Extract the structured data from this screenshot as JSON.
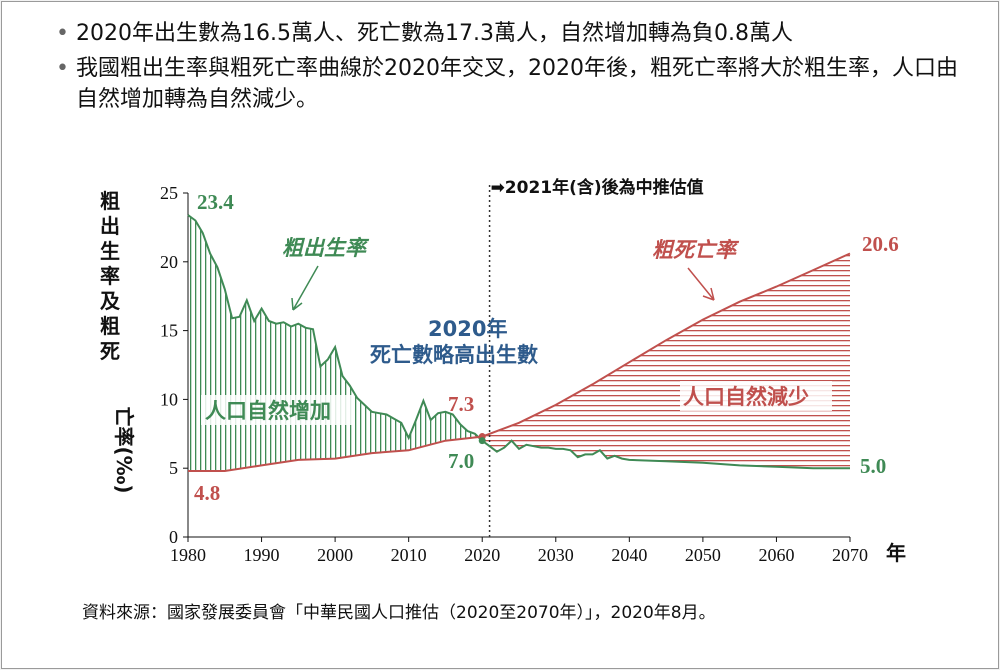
{
  "bullets": [
    "2020年出生數為16.5萬人、死亡數為17.3萬人，自然增加轉為負0.8萬人",
    "我國粗出生率與粗死亡率曲線於2020年交叉，2020年後，粗死亡率將大於粗生率，人口由自然增加轉為自然減少。"
  ],
  "colors": {
    "birth": "#3f8a55",
    "death": "#c0504d",
    "note_blue": "#2e5b8c"
  },
  "chart_data": {
    "type": "line",
    "title": "",
    "ylabel": "粗出生率及粗死亡率(‰)",
    "xlabel": "年",
    "xlim": [
      1980,
      2070
    ],
    "ylim": [
      0,
      25
    ],
    "x_ticks": [
      1980,
      1990,
      2000,
      2010,
      2020,
      2030,
      2040,
      2050,
      2060,
      2070
    ],
    "y_ticks": [
      0,
      5,
      10,
      15,
      20,
      25
    ],
    "projection_divider_year": 2021,
    "projection_note": "➡2021年(含)後為中推估值",
    "series": [
      {
        "name": "粗出生率",
        "points": [
          [
            1980,
            23.4
          ],
          [
            1981,
            23.0
          ],
          [
            1982,
            22.1
          ],
          [
            1983,
            20.6
          ],
          [
            1984,
            19.6
          ],
          [
            1985,
            18.0
          ],
          [
            1986,
            15.9
          ],
          [
            1987,
            16.0
          ],
          [
            1988,
            17.2
          ],
          [
            1989,
            15.7
          ],
          [
            1990,
            16.6
          ],
          [
            1991,
            15.7
          ],
          [
            1992,
            15.5
          ],
          [
            1993,
            15.6
          ],
          [
            1994,
            15.3
          ],
          [
            1995,
            15.5
          ],
          [
            1996,
            15.2
          ],
          [
            1997,
            15.1
          ],
          [
            1998,
            12.4
          ],
          [
            1999,
            12.9
          ],
          [
            2000,
            13.8
          ],
          [
            2001,
            11.7
          ],
          [
            2002,
            11.0
          ],
          [
            2003,
            10.1
          ],
          [
            2004,
            9.6
          ],
          [
            2005,
            9.1
          ],
          [
            2006,
            9.0
          ],
          [
            2007,
            8.9
          ],
          [
            2008,
            8.6
          ],
          [
            2009,
            8.3
          ],
          [
            2010,
            7.2
          ],
          [
            2011,
            8.5
          ],
          [
            2012,
            9.9
          ],
          [
            2013,
            8.5
          ],
          [
            2014,
            9.0
          ],
          [
            2015,
            9.1
          ],
          [
            2016,
            8.9
          ],
          [
            2017,
            8.2
          ],
          [
            2018,
            7.7
          ],
          [
            2019,
            7.5
          ],
          [
            2020,
            7.0
          ],
          [
            2021,
            6.6
          ],
          [
            2022,
            6.2
          ],
          [
            2023,
            6.5
          ],
          [
            2024,
            7.0
          ],
          [
            2025,
            6.4
          ],
          [
            2026,
            6.7
          ],
          [
            2027,
            6.6
          ],
          [
            2028,
            6.5
          ],
          [
            2029,
            6.5
          ],
          [
            2030,
            6.4
          ],
          [
            2031,
            6.4
          ],
          [
            2032,
            6.3
          ],
          [
            2033,
            5.8
          ],
          [
            2034,
            6.0
          ],
          [
            2035,
            6.0
          ],
          [
            2036,
            6.3
          ],
          [
            2037,
            5.7
          ],
          [
            2038,
            5.9
          ],
          [
            2039,
            5.7
          ],
          [
            2040,
            5.6
          ],
          [
            2045,
            5.5
          ],
          [
            2050,
            5.4
          ],
          [
            2055,
            5.2
          ],
          [
            2060,
            5.1
          ],
          [
            2065,
            5.0
          ],
          [
            2070,
            5.0
          ]
        ]
      },
      {
        "name": "粗死亡率",
        "points": [
          [
            1980,
            4.8
          ],
          [
            1985,
            4.8
          ],
          [
            1990,
            5.2
          ],
          [
            1995,
            5.6
          ],
          [
            2000,
            5.7
          ],
          [
            2005,
            6.1
          ],
          [
            2010,
            6.3
          ],
          [
            2015,
            7.0
          ],
          [
            2020,
            7.3
          ],
          [
            2025,
            8.3
          ],
          [
            2030,
            9.6
          ],
          [
            2035,
            11.1
          ],
          [
            2040,
            12.7
          ],
          [
            2045,
            14.3
          ],
          [
            2050,
            15.8
          ],
          [
            2055,
            17.1
          ],
          [
            2060,
            18.2
          ],
          [
            2065,
            19.4
          ],
          [
            2070,
            20.6
          ]
        ]
      }
    ],
    "labels": {
      "birth_series": "粗出生率",
      "death_series": "粗死亡率",
      "birth_start": "23.4",
      "death_start": "4.8",
      "birth_2020": "7.0",
      "death_2020": "7.3",
      "birth_end": "5.0",
      "death_end": "20.6",
      "cross_year": "2020年",
      "cross_note": "死亡數略高出生數",
      "natural_increase": "人口自然增加",
      "natural_decrease": "人口自然減少"
    }
  },
  "source": "資料來源：國家發展委員會「中華民國人口推估（2020至2070年）」，2020年8月。"
}
